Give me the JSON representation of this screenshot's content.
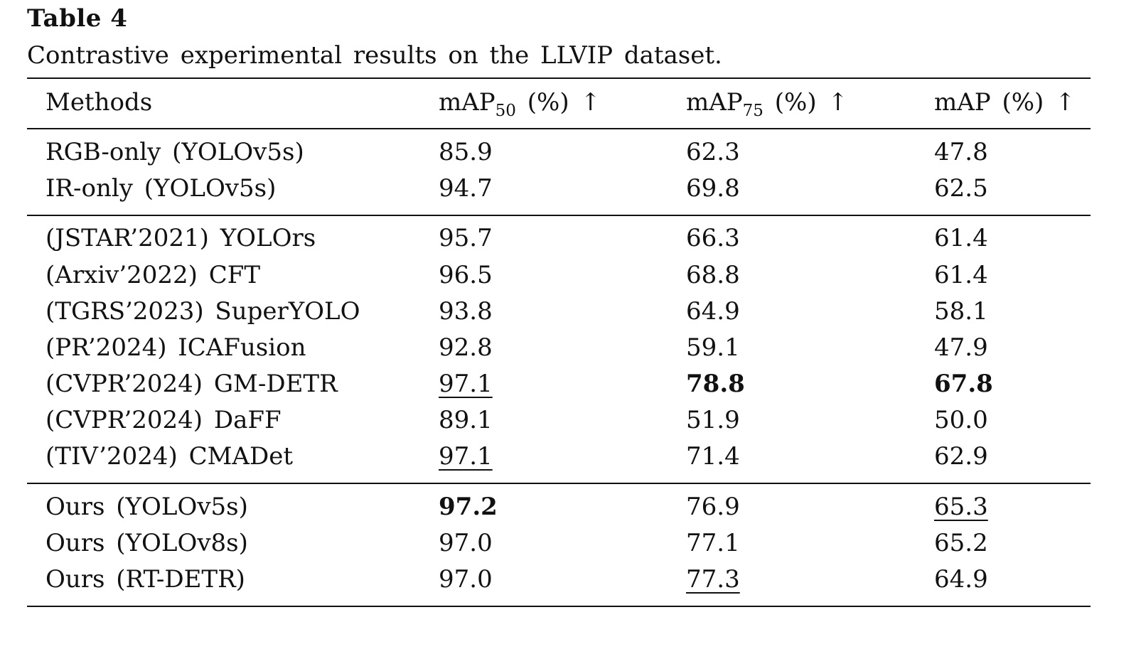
{
  "table": {
    "label": "Table 4",
    "caption": "Contrastive experimental results on the LLVIP dataset.",
    "header": {
      "col0": "Methods",
      "col1_main": "mAP",
      "col1_sub": "50",
      "col1_suffix": "(%) ↑",
      "col2_main": "mAP",
      "col2_sub": "75",
      "col2_suffix": "(%) ↑",
      "col3": "mAP (%) ↑"
    },
    "rows": [
      {
        "method": "RGB-only (YOLOv5s)",
        "map50": "85.9",
        "map75": "62.3",
        "map": "47.8"
      },
      {
        "method": "IR-only (YOLOv5s)",
        "map50": "94.7",
        "map75": "69.8",
        "map": "62.5"
      },
      {
        "method": "(JSTAR’2021) YOLOrs",
        "map50": "95.7",
        "map75": "66.3",
        "map": "61.4"
      },
      {
        "method": "(Arxiv’2022) CFT",
        "map50": "96.5",
        "map75": "68.8",
        "map": "61.4"
      },
      {
        "method": "(TGRS’2023) SuperYOLO",
        "map50": "93.8",
        "map75": "64.9",
        "map": "58.1"
      },
      {
        "method": "(PR’2024) ICAFusion",
        "map50": "92.8",
        "map75": "59.1",
        "map": "47.9"
      },
      {
        "method": "(CVPR’2024) GM-DETR",
        "map50": "97.1",
        "map75": "78.8",
        "map": "67.8"
      },
      {
        "method": "(CVPR’2024) DaFF",
        "map50": "89.1",
        "map75": "51.9",
        "map": "50.0"
      },
      {
        "method": "(TIV’2024) CMADet",
        "map50": "97.1",
        "map75": "71.4",
        "map": "62.9"
      },
      {
        "method": "Ours (YOLOv5s)",
        "map50": "97.2",
        "map75": "76.9",
        "map": "65.3"
      },
      {
        "method": "Ours (YOLOv8s)",
        "map50": "97.0",
        "map75": "77.1",
        "map": "65.2"
      },
      {
        "method": "Ours (RT-DETR)",
        "map50": "97.0",
        "map75": "77.3",
        "map": "64.9"
      }
    ]
  }
}
